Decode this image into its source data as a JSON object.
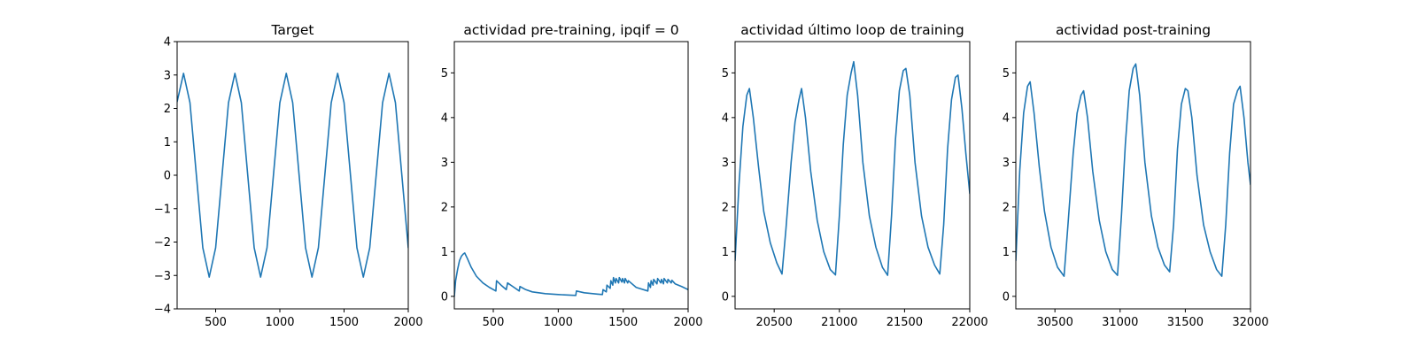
{
  "figure": {
    "line_color": "#1f77b4"
  },
  "chart_data": [
    {
      "type": "line",
      "title": "Target",
      "xlabel": "",
      "ylabel": "",
      "xlim": [
        200,
        2000
      ],
      "ylim": [
        -4,
        4
      ],
      "xticks": [
        500,
        1000,
        1500,
        2000
      ],
      "yticks": [
        -4,
        -3,
        -2,
        -1,
        0,
        1,
        2,
        3,
        4
      ],
      "xtick_labels": [
        "500",
        "1000",
        "1500",
        "2000"
      ],
      "ytick_labels": [
        "−4",
        "−3",
        "−2",
        "−1",
        "0",
        "1",
        "2",
        "3",
        "4"
      ],
      "grid": false,
      "series": [
        {
          "x": [
            200,
            250,
            300,
            350,
            400,
            450,
            500,
            550,
            600,
            650,
            700,
            750,
            800,
            850,
            900,
            950,
            1000,
            1050,
            1100,
            1150,
            1200,
            1250,
            1300,
            1350,
            1400,
            1450,
            1500,
            1550,
            1600,
            1650,
            1700,
            1750,
            1800,
            1850,
            1900,
            1950,
            2000
          ],
          "y": [
            2.2,
            3.05,
            2.17,
            0.0,
            -2.17,
            -3.05,
            -2.17,
            0.0,
            2.17,
            3.05,
            2.17,
            0.0,
            -2.17,
            -3.05,
            -2.17,
            0.0,
            2.17,
            3.05,
            2.17,
            0.0,
            -2.17,
            -3.05,
            -2.17,
            0.0,
            2.17,
            3.05,
            2.17,
            0.0,
            -2.17,
            -3.05,
            -2.17,
            0.0,
            2.17,
            3.05,
            2.17,
            0.0,
            -2.17
          ]
        }
      ]
    },
    {
      "type": "line",
      "title": "actividad pre-training, ipqif = 0",
      "xlabel": "",
      "ylabel": "",
      "xlim": [
        200,
        2000
      ],
      "ylim": [
        -0.28,
        5.7
      ],
      "xticks": [
        500,
        1000,
        1500,
        2000
      ],
      "yticks": [
        0,
        1,
        2,
        3,
        4,
        5
      ],
      "xtick_labels": [
        "500",
        "1000",
        "1500",
        "2000"
      ],
      "ytick_labels": [
        "0",
        "1",
        "2",
        "3",
        "4",
        "5"
      ],
      "grid": false,
      "series": [
        {
          "x": [
            200,
            210,
            225,
            240,
            255,
            270,
            280,
            300,
            330,
            370,
            420,
            470,
            520,
            525,
            560,
            600,
            610,
            650,
            700,
            705,
            750,
            800,
            900,
            1000,
            1135,
            1140,
            1200,
            1300,
            1340,
            1345,
            1370,
            1375,
            1400,
            1405,
            1420,
            1425,
            1440,
            1445,
            1465,
            1470,
            1490,
            1495,
            1510,
            1515,
            1535,
            1540,
            1600,
            1690,
            1695,
            1710,
            1715,
            1730,
            1735,
            1760,
            1765,
            1790,
            1795,
            1810,
            1815,
            1840,
            1845,
            1870,
            1875,
            1900,
            1950,
            2000
          ],
          "y": [
            0.0,
            0.35,
            0.6,
            0.8,
            0.9,
            0.95,
            0.97,
            0.85,
            0.65,
            0.45,
            0.3,
            0.2,
            0.12,
            0.35,
            0.25,
            0.15,
            0.3,
            0.22,
            0.12,
            0.22,
            0.15,
            0.1,
            0.06,
            0.04,
            0.02,
            0.12,
            0.08,
            0.05,
            0.04,
            0.15,
            0.1,
            0.25,
            0.18,
            0.35,
            0.25,
            0.42,
            0.3,
            0.4,
            0.3,
            0.42,
            0.32,
            0.4,
            0.3,
            0.4,
            0.3,
            0.35,
            0.2,
            0.12,
            0.3,
            0.2,
            0.35,
            0.25,
            0.38,
            0.28,
            0.4,
            0.3,
            0.38,
            0.28,
            0.4,
            0.3,
            0.38,
            0.3,
            0.36,
            0.28,
            0.22,
            0.15
          ]
        }
      ]
    },
    {
      "type": "line",
      "title": "actividad último loop de training",
      "xlabel": "",
      "ylabel": "",
      "xlim": [
        20200,
        22000
      ],
      "ylim": [
        -0.28,
        5.7
      ],
      "xticks": [
        20500,
        21000,
        21500,
        22000
      ],
      "yticks": [
        0,
        1,
        2,
        3,
        4,
        5
      ],
      "xtick_labels": [
        "20500",
        "21000",
        "21500",
        "22000"
      ],
      "ytick_labels": [
        "0",
        "1",
        "2",
        "3",
        "4",
        "5"
      ],
      "grid": false,
      "series": [
        {
          "x": [
            20200,
            20230,
            20260,
            20290,
            20310,
            20340,
            20380,
            20420,
            20470,
            20520,
            20560,
            20590,
            20630,
            20660,
            20690,
            20710,
            20740,
            20780,
            20830,
            20880,
            20930,
            20970,
            21000,
            21030,
            21060,
            21090,
            21110,
            21140,
            21180,
            21230,
            21280,
            21330,
            21370,
            21400,
            21430,
            21460,
            21490,
            21510,
            21540,
            21580,
            21630,
            21680,
            21730,
            21770,
            21800,
            21830,
            21860,
            21890,
            21910,
            21940,
            21970,
            22000
          ],
          "y": [
            0.8,
            2.5,
            3.8,
            4.5,
            4.65,
            4.0,
            2.9,
            1.9,
            1.2,
            0.75,
            0.5,
            1.5,
            3.0,
            3.9,
            4.4,
            4.65,
            4.0,
            2.8,
            1.7,
            1.0,
            0.6,
            0.48,
            1.8,
            3.4,
            4.5,
            5.0,
            5.25,
            4.5,
            3.0,
            1.8,
            1.1,
            0.65,
            0.47,
            1.8,
            3.5,
            4.6,
            5.05,
            5.1,
            4.5,
            3.0,
            1.8,
            1.1,
            0.7,
            0.5,
            1.6,
            3.3,
            4.4,
            4.9,
            4.95,
            4.2,
            3.2,
            2.3
          ]
        }
      ]
    },
    {
      "type": "line",
      "title": "actividad post-training",
      "xlabel": "",
      "ylabel": "",
      "xlim": [
        30200,
        32000
      ],
      "ylim": [
        -0.28,
        5.7
      ],
      "xticks": [
        30500,
        31000,
        31500,
        32000
      ],
      "yticks": [
        0,
        1,
        2,
        3,
        4,
        5
      ],
      "xtick_labels": [
        "30500",
        "31000",
        "31500",
        "32000"
      ],
      "ytick_labels": [
        "0",
        "1",
        "2",
        "3",
        "4",
        "5"
      ],
      "grid": false,
      "series": [
        {
          "x": [
            30200,
            30230,
            30260,
            30290,
            30310,
            30340,
            30380,
            30420,
            30470,
            30520,
            30570,
            30600,
            30640,
            30670,
            30700,
            30720,
            30750,
            30790,
            30840,
            30890,
            30940,
            30980,
            31010,
            31040,
            31070,
            31100,
            31120,
            31150,
            31190,
            31240,
            31290,
            31340,
            31380,
            31410,
            31440,
            31470,
            31500,
            31520,
            31550,
            31590,
            31640,
            31690,
            31740,
            31780,
            31810,
            31840,
            31870,
            31900,
            31920,
            31950,
            31980,
            32000
          ],
          "y": [
            0.8,
            2.8,
            4.1,
            4.7,
            4.8,
            4.1,
            2.9,
            1.9,
            1.1,
            0.65,
            0.45,
            1.6,
            3.2,
            4.1,
            4.5,
            4.6,
            4.0,
            2.8,
            1.7,
            1.0,
            0.6,
            0.47,
            1.8,
            3.4,
            4.6,
            5.1,
            5.2,
            4.5,
            3.0,
            1.8,
            1.1,
            0.7,
            0.55,
            1.6,
            3.3,
            4.3,
            4.65,
            4.6,
            4.0,
            2.7,
            1.6,
            1.0,
            0.6,
            0.45,
            1.6,
            3.2,
            4.3,
            4.6,
            4.7,
            4.0,
            3.0,
            2.5
          ]
        }
      ]
    }
  ]
}
